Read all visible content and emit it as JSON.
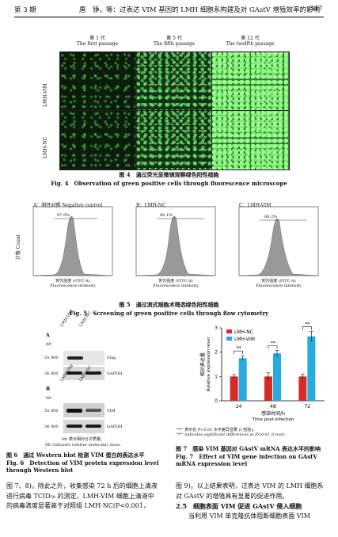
{
  "header": {
    "issue": "第 3 期",
    "title": "唐　铮，等：过表达 VIM 基因的 LMH 细胞系构建及对 GAstV 增殖效率的影响",
    "page": "347"
  },
  "fig4": {
    "col_titles_cn": [
      "第 1 代",
      "第 5 代",
      "第 12 代"
    ],
    "col_titles_en": [
      "The first passage",
      "The fifth passage",
      "The twelfth passage"
    ],
    "row_labels": [
      "LMH-VIM",
      "LMH-NC"
    ],
    "caption_cn": "图 4　通过荧光显微镜观察绿色阳性细胞",
    "caption_en": "Fig. 4　Observation of green positive cells through fluorescence microscope"
  },
  "fig5": {
    "panels": [
      {
        "title": "A：阴性对照 Negative control",
        "pct": "97.9%"
      },
      {
        "title": "B：LMH-NC",
        "pct": "96.1%"
      },
      {
        "title": "C：LMH-VIM",
        "pct": "89.2%"
      }
    ],
    "ylabel_cn": "计数",
    "ylabel_en": "Count",
    "xlabel_cn": "荧光强度 (FITC-A)",
    "xlabel_en": "Fluorescence intensity",
    "caption_cn": "图 5　通过流式细胞术筛选绿色阳性细胞",
    "caption_en": "Fig. 5　Screening of green positive cells through flow cytometry"
  },
  "fig6": {
    "panel_a": "A",
    "panel_b": "B",
    "mr": "Mr",
    "lanes": [
      "LMH-VIM",
      "LMH-NC"
    ],
    "a_markers": [
      "55 000",
      "36 000"
    ],
    "a_labels": [
      "Flag",
      "GAPDH"
    ],
    "b_markers": [
      "55 000",
      "36 000"
    ],
    "b_labels": [
      "VIM",
      "GAPDH"
    ],
    "note_cn": "Mr 表示相对分子质量。",
    "note_en": "Mr indicates relative molecular mass.",
    "caption_cn": "图 6　通过 Western blot 检测 VIM 蛋白的表达水平",
    "caption_en": "Fig. 6　Detection of VIM protein expression level through Western blot"
  },
  "fig7": {
    "note1_cn": "\"**\" 表示在 P<0.01 水平差异显著 (t 检验)。",
    "note1_en": "\"**\" indicates significant differences at P<0.01 (t test).",
    "caption_cn": "图 7　感染 VIM 基因对 GAstV mRNA 表达水平的影响",
    "caption_en": "Fig. 7　Effect of VIM gene infection on GAstV mRNA expression level"
  },
  "chart_data": {
    "type": "bar",
    "categories": [
      "24",
      "48",
      "72"
    ],
    "series": [
      {
        "name": "LMH-NC",
        "color": "#d62b26",
        "values": [
          1.0,
          1.0,
          1.0
        ],
        "err": [
          0.08,
          0.15,
          0.1
        ]
      },
      {
        "name": "LMH-VIM",
        "color": "#28a9e0",
        "values": [
          1.75,
          1.95,
          2.65
        ],
        "err": [
          0.1,
          0.12,
          0.2
        ]
      }
    ],
    "ylim": [
      0,
      3
    ],
    "yticks": [
      "0",
      "1",
      "2",
      "3"
    ],
    "ylabel_cn": "相对表达量",
    "ylabel_en": "Relative expression level",
    "xlabel_cn": "感染时间/h",
    "xlabel_en": "Time post-infection",
    "significance": [
      "**",
      "**",
      "**"
    ],
    "legend": "top-left"
  },
  "body": {
    "left_lines": [
      "图 7、8)。除此之外，收集感染 72 h 后的细胞上清液",
      "进行病毒 TCID₅₀ 的测定，LMH-VIM 细胞上清液中",
      "的病毒滴度显著高于对照组 LMH-NC(P<0.001，"
    ],
    "right_lines": [
      "图 9)。以上结果表明，过表达 VIM 的 LMH 细胞系",
      "对 GAstV 的增殖具有显著的促进作用。"
    ],
    "section": "2.5　细胞表面 VIM 促进 GAstV 侵入细胞",
    "section_line": "　　当利用 VIM 单克隆抗体阻断细胞表面 VIM"
  }
}
